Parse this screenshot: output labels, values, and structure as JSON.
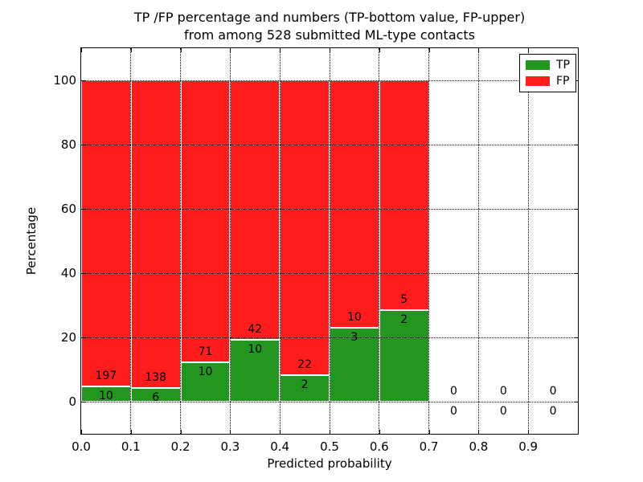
{
  "chart_data": {
    "type": "bar",
    "stacked": true,
    "title_line1": "TP /FP percentage and numbers (TP-bottom value, FP-upper)",
    "title_line2": "from among 528 submitted ML-type contacts",
    "total_submitted_contacts": 528,
    "xlabel": "Predicted probability",
    "ylabel": "Percentage",
    "xlim": [
      0.0,
      1.0
    ],
    "ylim": [
      -10,
      110
    ],
    "grid": true,
    "grid_style": "dotted",
    "legend_position": "upper right",
    "xtick_labels": [
      "0.0",
      "0.1",
      "0.2",
      "0.3",
      "0.4",
      "0.5",
      "0.6",
      "0.7",
      "0.8",
      "0.9"
    ],
    "ytick_labels": [
      "0",
      "20",
      "40",
      "60",
      "80",
      "100"
    ],
    "series": [
      {
        "name": "TP",
        "color": "#22961e"
      },
      {
        "name": "FP",
        "color": "#ff1c1c"
      }
    ],
    "bin_width": 0.1,
    "bins": [
      {
        "x_start": 0.0,
        "x_end": 0.1,
        "tp": 10,
        "fp": 197,
        "tp_pct": 4.83
      },
      {
        "x_start": 0.1,
        "x_end": 0.2,
        "tp": 6,
        "fp": 138,
        "tp_pct": 4.17
      },
      {
        "x_start": 0.2,
        "x_end": 0.3,
        "tp": 10,
        "fp": 71,
        "tp_pct": 12.35
      },
      {
        "x_start": 0.3,
        "x_end": 0.4,
        "tp": 10,
        "fp": 42,
        "tp_pct": 19.23
      },
      {
        "x_start": 0.4,
        "x_end": 0.5,
        "tp": 2,
        "fp": 22,
        "tp_pct": 8.33
      },
      {
        "x_start": 0.5,
        "x_end": 0.6,
        "tp": 3,
        "fp": 10,
        "tp_pct": 23.08
      },
      {
        "x_start": 0.6,
        "x_end": 0.7,
        "tp": 2,
        "fp": 5,
        "tp_pct": 28.57
      },
      {
        "x_start": 0.7,
        "x_end": 0.8,
        "tp": 0,
        "fp": 0,
        "tp_pct": 0
      },
      {
        "x_start": 0.8,
        "x_end": 0.9,
        "tp": 0,
        "fp": 0,
        "tp_pct": 0
      },
      {
        "x_start": 0.9,
        "x_end": 1.0,
        "tp": 0,
        "fp": 0,
        "tp_pct": 0
      }
    ]
  }
}
